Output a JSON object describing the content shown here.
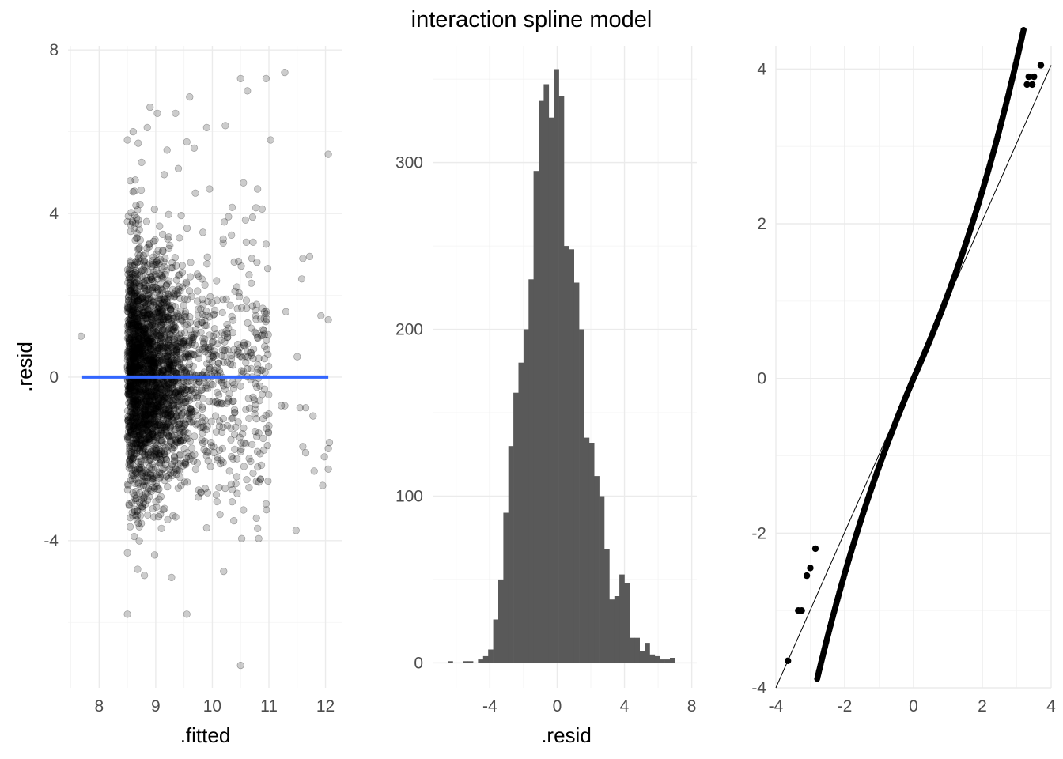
{
  "title": "interaction spline model",
  "chart_data": [
    {
      "type": "scatter",
      "xlabel": ".fitted",
      "ylabel": ".resid",
      "xlim": [
        7.45,
        12.3
      ],
      "ylim": [
        -7.6,
        8.1
      ],
      "x_ticks": [
        "8",
        "9",
        "10",
        "11",
        "12"
      ],
      "y_ticks": [
        "-4",
        "0",
        "4",
        "8"
      ],
      "grid": true,
      "reference_line": {
        "y": 0,
        "x_from": 7.7,
        "x_to": 12.05,
        "color": "#3366ff"
      },
      "point_color": "#000000",
      "point_alpha": 0.2,
      "points": [
        [
          7.68,
          1.0
        ],
        [
          10.5,
          7.3
        ],
        [
          10.62,
          7.0
        ],
        [
          10.95,
          7.3
        ],
        [
          11.28,
          7.45
        ],
        [
          9.6,
          6.85
        ],
        [
          9.03,
          6.45
        ],
        [
          8.9,
          6.6
        ],
        [
          9.35,
          6.45
        ],
        [
          12.05,
          5.45
        ],
        [
          11.03,
          5.8
        ],
        [
          10.23,
          6.15
        ],
        [
          9.9,
          6.1
        ],
        [
          8.5,
          5.8
        ],
        [
          8.6,
          6.0
        ],
        [
          8.85,
          6.1
        ],
        [
          9.55,
          5.75
        ],
        [
          9.68,
          5.6
        ],
        [
          10.55,
          4.75
        ],
        [
          10.8,
          4.6
        ],
        [
          10.35,
          4.15
        ],
        [
          10.6,
          3.3
        ],
        [
          10.95,
          3.25
        ],
        [
          10.7,
          2.9
        ],
        [
          11.6,
          2.9
        ],
        [
          11.72,
          2.95
        ],
        [
          11.58,
          2.4
        ],
        [
          11.92,
          1.5
        ],
        [
          12.05,
          1.4
        ],
        [
          11.3,
          1.6
        ],
        [
          11.5,
          0.5
        ],
        [
          11.22,
          -0.7
        ],
        [
          11.28,
          -0.7
        ],
        [
          11.55,
          -0.75
        ],
        [
          11.65,
          -0.75
        ],
        [
          11.78,
          -0.95
        ],
        [
          11.6,
          -1.7
        ],
        [
          12.07,
          -1.6
        ],
        [
          12.05,
          -1.75
        ],
        [
          11.98,
          -1.95
        ],
        [
          11.65,
          -1.85
        ],
        [
          11.8,
          -2.3
        ],
        [
          12.05,
          -2.25
        ],
        [
          11.95,
          -2.65
        ],
        [
          11.48,
          -3.75
        ],
        [
          10.9,
          -1.5
        ],
        [
          10.8,
          -2.2
        ],
        [
          10.72,
          -2.35
        ],
        [
          10.85,
          -2.5
        ],
        [
          10.65,
          -2.7
        ],
        [
          10.55,
          -3.25
        ],
        [
          10.78,
          -3.45
        ],
        [
          10.8,
          -3.7
        ],
        [
          10.95,
          -3.1
        ],
        [
          10.82,
          -3.95
        ],
        [
          10.52,
          -3.95
        ],
        [
          10.2,
          -4.75
        ],
        [
          10.5,
          -7.05
        ],
        [
          9.55,
          -5.8
        ],
        [
          8.5,
          -5.8
        ],
        [
          9.28,
          -4.9
        ],
        [
          8.8,
          -4.85
        ],
        [
          8.68,
          -4.7
        ],
        [
          8.5,
          -4.3
        ],
        [
          8.98,
          -4.35
        ],
        [
          8.62,
          -3.9
        ],
        [
          9.1,
          -3.7
        ],
        [
          10.35,
          -3.05
        ],
        [
          10.12,
          -2.7
        ],
        [
          10.18,
          -1.75
        ],
        [
          10.72,
          3.3
        ],
        [
          10.65,
          2.5
        ],
        [
          10.4,
          2.1
        ],
        [
          10.45,
          0.8
        ],
        [
          10.75,
          1.1
        ],
        [
          10.62,
          0.2
        ],
        [
          10.8,
          0.3
        ],
        [
          10.75,
          -0.9
        ],
        [
          11.0,
          -0.9
        ],
        [
          10.95,
          1.55
        ],
        [
          9.45,
          3.95
        ],
        [
          9.7,
          4.5
        ],
        [
          9.2,
          5.55
        ],
        [
          9.15,
          4.95
        ],
        [
          9.4,
          5.1
        ],
        [
          8.75,
          5.25
        ],
        [
          8.55,
          4.8
        ],
        [
          8.65,
          4.2
        ],
        [
          8.5,
          3.8
        ],
        [
          9.95,
          4.6
        ]
      ]
    },
    {
      "type": "bar",
      "subtype": "histogram",
      "xlabel": ".resid",
      "ylabel": "",
      "xlim": [
        -7.4,
        8.3
      ],
      "ylim": [
        -15,
        370
      ],
      "x_ticks": [
        "-4",
        "0",
        "4",
        "8"
      ],
      "y_ticks": [
        "0",
        "100",
        "200",
        "300"
      ],
      "grid": true,
      "bar_color": "#595959",
      "bin_width": 0.3,
      "bin_start": -6.5,
      "values": [
        1,
        0,
        0,
        1,
        1,
        0,
        2,
        4,
        8,
        26,
        50,
        90,
        130,
        162,
        180,
        200,
        230,
        295,
        337,
        347,
        327,
        356,
        340,
        250,
        248,
        228,
        200,
        135,
        132,
        112,
        100,
        68,
        38,
        40,
        53,
        48,
        15,
        15,
        7,
        12,
        5,
        4,
        2,
        2,
        3
      ]
    },
    {
      "type": "scatter",
      "subtype": "qq",
      "xlabel": "",
      "ylabel": "",
      "xlim": [
        -4.0,
        4.0
      ],
      "ylim": [
        -4.0,
        4.3
      ],
      "x_ticks": [
        "-4",
        "-2",
        "0",
        "2",
        "4"
      ],
      "y_ticks": [
        "-4",
        "-2",
        "0",
        "2",
        "4"
      ],
      "grid": true,
      "reference_line": {
        "x1": -4.0,
        "y1": -4.0,
        "x2": 4.0,
        "y2": 4.05,
        "color": "#000000"
      },
      "point_color": "#000000",
      "outliers": [
        [
          -3.65,
          -3.65
        ],
        [
          -3.35,
          -3.0
        ],
        [
          -3.25,
          -3.0
        ],
        [
          -3.1,
          -2.55
        ],
        [
          -3.0,
          -2.45
        ],
        [
          -2.85,
          -2.2
        ],
        [
          3.3,
          3.8
        ],
        [
          3.45,
          3.8
        ],
        [
          3.35,
          3.9
        ],
        [
          3.5,
          3.9
        ],
        [
          3.7,
          4.05
        ]
      ]
    }
  ]
}
